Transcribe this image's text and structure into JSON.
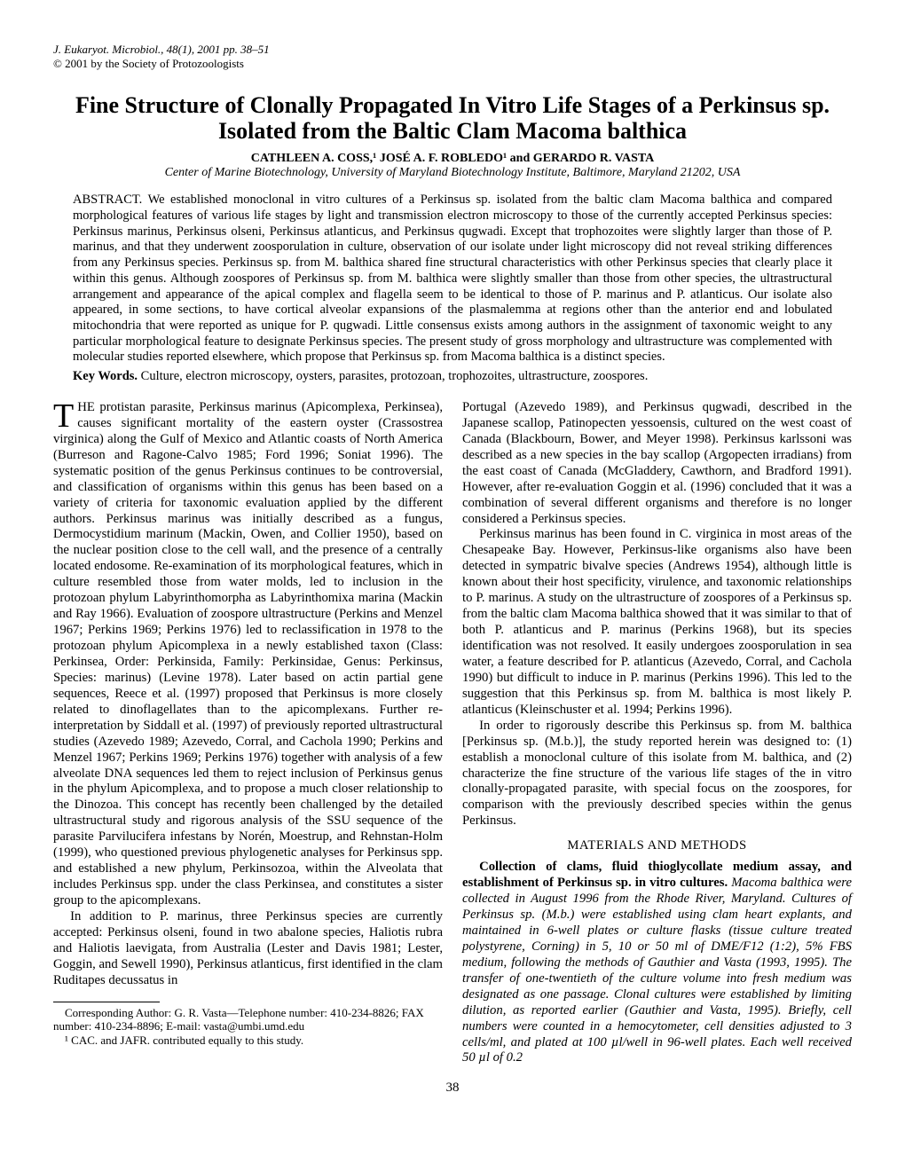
{
  "header": {
    "journal_line": "J. Eukaryot. Microbiol., 48(1), 2001 pp. 38–51",
    "copyright_line": "© 2001 by the Society of Protozoologists"
  },
  "title_line1": "Fine Structure of Clonally Propagated In Vitro Life Stages of a Perkinsus sp.",
  "title_line2": "Isolated from the Baltic Clam Macoma balthica",
  "authors": "CATHLEEN A. COSS,¹ JOSÉ A. F. ROBLEDO¹ and GERARDO R. VASTA",
  "affiliation": "Center of Marine Biotechnology, University of Maryland Biotechnology Institute, Baltimore, Maryland 21202, USA",
  "abstract_label": "ABSTRACT.  ",
  "abstract_body": "We established monoclonal in vitro cultures of a Perkinsus sp. isolated from the baltic clam Macoma balthica and compared morphological features of various life stages by light and transmission electron microscopy to those of the currently accepted Perkinsus species: Perkinsus marinus, Perkinsus olseni, Perkinsus atlanticus, and Perkinsus qugwadi. Except that trophozoites were slightly larger than those of P. marinus, and that they underwent zoosporulation in culture, observation of our isolate under light microscopy did not reveal striking differences from any Perkinsus species. Perkinsus sp. from M. balthica shared fine structural characteristics with other Perkinsus species that clearly place it within this genus. Although zoospores of Perkinsus sp. from M. balthica were slightly smaller than those from other species, the ultrastructural arrangement and appearance of the apical complex and flagella seem to be identical to those of P. marinus and P. atlanticus. Our isolate also appeared, in some sections, to have cortical alveolar expansions of the plasmalemma at regions other than the anterior end and lobulated mitochondria that were reported as unique for P. qugwadi. Little consensus exists among authors in the assignment of taxonomic weight to any particular morphological feature to designate Perkinsus species. The present study of gross morphology and ultrastructure was complemented with molecular studies reported elsewhere, which propose that Perkinsus sp. from Macoma balthica is a distinct species.",
  "keywords_label": "Key Words.  ",
  "keywords_body": "Culture, electron microscopy, oysters, parasites, protozoan, trophozoites, ultrastructure, zoospores.",
  "body": {
    "p1": "THE protistan parasite, Perkinsus marinus (Apicomplexa, Perkinsea), causes significant mortality of the eastern oyster (Crassostrea virginica) along the Gulf of Mexico and Atlantic coasts of North America (Burreson and Ragone-Calvo 1985; Ford 1996; Soniat 1996). The systematic position of the genus Perkinsus continues to be controversial, and classification of organisms within this genus has been based on a variety of criteria for taxonomic evaluation applied by the different authors. Perkinsus marinus was initially described as a fungus, Dermocystidium marinum (Mackin, Owen, and Collier 1950), based on the nuclear position close to the cell wall, and the presence of a centrally located endosome. Re-examination of its morphological features, which in culture resembled those from water molds, led to inclusion in the protozoan phylum Labyrinthomorpha as Labyrinthomixa marina (Mackin and Ray 1966). Evaluation of zoospore ultrastructure (Perkins and Menzel 1967; Perkins 1969; Perkins 1976) led to reclassification in 1978 to the protozoan phylum Apicomplexa in a newly established taxon (Class: Perkinsea, Order: Perkinsida, Family: Perkinsidae, Genus: Perkinsus, Species: marinus) (Levine 1978). Later based on actin partial gene sequences, Reece et al. (1997) proposed that Perkinsus is more closely related to dinoflagellates than to the apicomplexans. Further re-interpretation by Siddall et al. (1997) of previously reported ultrastructural studies (Azevedo 1989; Azevedo, Corral, and Cachola 1990; Perkins and Menzel 1967; Perkins 1969; Perkins 1976) together with analysis of a few alveolate DNA sequences led them to reject inclusion of Perkinsus genus in the phylum Apicomplexa, and to propose a much closer relationship to the Dinozoa. This concept has recently been challenged by the detailed ultrastructural study and rigorous analysis of the SSU sequence of the parasite Parvilucifera infestans by Norén, Moestrup, and Rehnstan-Holm (1999), who questioned previous phylogenetic analyses for Perkinsus spp. and established a new phylum, Perkinsozoa, within the Alveolata that includes Perkinsus spp. under the class Perkinsea, and constitutes a sister group to the apicomplexans.",
    "p2": "In addition to P. marinus, three Perkinsus species are currently accepted: Perkinsus olseni, found in two abalone species, Haliotis rubra and Haliotis laevigata, from Australia (Lester and Davis 1981; Lester, Goggin, and Sewell 1990), Perkinsus atlanticus, first identified in the clam Ruditapes decussatus in",
    "p3": "Portugal (Azevedo 1989), and Perkinsus qugwadi, described in the Japanese scallop, Patinopecten yessoensis, cultured on the west coast of Canada (Blackbourn, Bower, and Meyer 1998). Perkinsus karlssoni was described as a new species in the bay scallop (Argopecten irradians) from the east coast of Canada (McGladdery, Cawthorn, and Bradford 1991). However, after re-evaluation Goggin et al. (1996) concluded that it was a combination of several different organisms and therefore is no longer considered a Perkinsus species.",
    "p4": "Perkinsus marinus has been found in C. virginica in most areas of the Chesapeake Bay. However, Perkinsus-like organisms also have been detected in sympatric bivalve species (Andrews 1954), although little is known about their host specificity, virulence, and taxonomic relationships to P. marinus. A study on the ultrastructure of zoospores of a Perkinsus sp. from the baltic clam Macoma balthica showed that it was similar to that of both P. atlanticus and P. marinus (Perkins 1968), but its species identification was not resolved. It easily undergoes zoosporulation in sea water, a feature described for P. atlanticus (Azevedo, Corral, and Cachola 1990) but difficult to induce in P. marinus (Perkins 1996). This led to the suggestion that this Perkinsus sp. from M. balthica is most likely P. atlanticus (Kleinschuster et al. 1994; Perkins 1996).",
    "p5": "In order to rigorously describe this Perkinsus sp. from M. balthica [Perkinsus sp. (M.b.)], the study reported herein was designed to: (1) establish a monoclonal culture of this isolate from M. balthica, and (2) characterize the fine structure of the various life stages of the in vitro clonally-propagated parasite, with special focus on the zoospores, for comparison with the previously described species within the genus Perkinsus.",
    "section_head": "MATERIALS AND METHODS",
    "p6_runin": "Collection of clams, fluid thioglycollate medium assay, and establishment of Perkinsus sp. in vitro cultures.",
    "p6_rest": " Macoma balthica were collected in August 1996 from the Rhode River, Maryland. Cultures of Perkinsus sp. (M.b.) were established using clam heart explants, and maintained in 6-well plates or culture flasks (tissue culture treated polystyrene, Corning) in 5, 10 or 50 ml of DME/F12 (1:2), 5% FBS medium, following the methods of Gauthier and Vasta (1993, 1995). The transfer of one-twentieth of the culture volume into fresh medium was designated as one passage. Clonal cultures were established by limiting dilution, as reported earlier (Gauthier and Vasta, 1995). Briefly, cell numbers were counted in a hemocytometer, cell densities adjusted to 3 cells/ml, and plated at 100 µl/well in 96-well plates. Each well received 50 µl of 0.2"
  },
  "footnotes": {
    "corr": "Corresponding Author: G. R. Vasta—Telephone number: 410-234-8826; FAX number: 410-234-8896; E-mail: vasta@umbi.umd.edu",
    "equal": "¹ CAC. and JAFR. contributed equally to this study."
  },
  "page_number": "38"
}
